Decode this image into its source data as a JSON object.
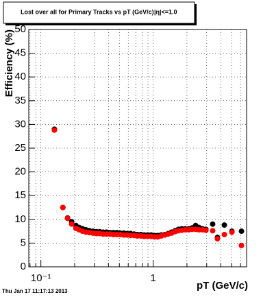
{
  "chart_data": {
    "type": "scatter",
    "title": "Lost over all for Primary Tracks vs pT (GeV/c)",
    "annotation": "|η|<=1.0",
    "footer": "Thu Jan 17 11:17:13 2013",
    "x_label": "pT (GeV/c)",
    "y_label": "Efficiency (%)",
    "log_x": true,
    "grid": true,
    "xlim": [
      0.078,
      6.8
    ],
    "ylim": [
      0,
      50
    ],
    "xticks": [
      {
        "value": 0.1,
        "label": "10⁻¹"
      },
      1
    ],
    "xminorticks": [
      0.08,
      0.09,
      0.2,
      0.3,
      0.4,
      0.5,
      0.6,
      0.7,
      0.8,
      0.9,
      2,
      3,
      4,
      5,
      6
    ],
    "yticks": [
      0,
      5,
      10,
      15,
      20,
      25,
      30,
      35,
      40,
      45,
      50
    ],
    "x": [
      0.132,
      0.157,
      0.173,
      0.188,
      0.205,
      0.219,
      0.235,
      0.252,
      0.271,
      0.291,
      0.312,
      0.334,
      0.359,
      0.385,
      0.413,
      0.443,
      0.475,
      0.509,
      0.547,
      0.586,
      0.629,
      0.675,
      0.724,
      0.777,
      0.833,
      0.894,
      0.959,
      1.03,
      1.1,
      1.18,
      1.27,
      1.36,
      1.46,
      1.57,
      1.68,
      1.8,
      1.93,
      2.08,
      2.23,
      2.39,
      2.56,
      2.75,
      2.95,
      3.39,
      3.74,
      4.31,
      5.03,
      6.12
    ],
    "series": [
      {
        "color": "#000000",
        "values": [
          29.0,
          12.5,
          10.3,
          9.5,
          8.7,
          8.3,
          8.0,
          7.8,
          7.6,
          7.5,
          7.4,
          7.4,
          7.3,
          7.3,
          7.2,
          7.2,
          7.2,
          7.1,
          7.1,
          7.0,
          7.0,
          6.9,
          6.8,
          6.8,
          6.7,
          6.7,
          6.7,
          6.6,
          6.6,
          6.7,
          6.8,
          7.0,
          7.3,
          7.6,
          7.9,
          8.0,
          8.0,
          8.0,
          8.2,
          8.7,
          8.3,
          8.0,
          7.9,
          9.0,
          6.2,
          8.8,
          7.5,
          7.5
        ]
      },
      {
        "color": "#ff0000",
        "values": [
          28.8,
          12.5,
          10.2,
          9.0,
          8.1,
          7.8,
          7.5,
          7.3,
          7.2,
          7.1,
          7.0,
          7.0,
          6.9,
          6.9,
          6.9,
          6.8,
          6.8,
          6.8,
          6.7,
          6.7,
          6.6,
          6.6,
          6.5,
          6.5,
          6.4,
          6.4,
          6.4,
          6.3,
          6.3,
          6.5,
          6.7,
          6.9,
          7.1,
          7.4,
          7.6,
          7.7,
          7.8,
          7.8,
          7.9,
          7.9,
          7.8,
          7.8,
          7.7,
          7.6,
          5.9,
          6.8,
          7.3,
          4.5
        ]
      }
    ]
  }
}
